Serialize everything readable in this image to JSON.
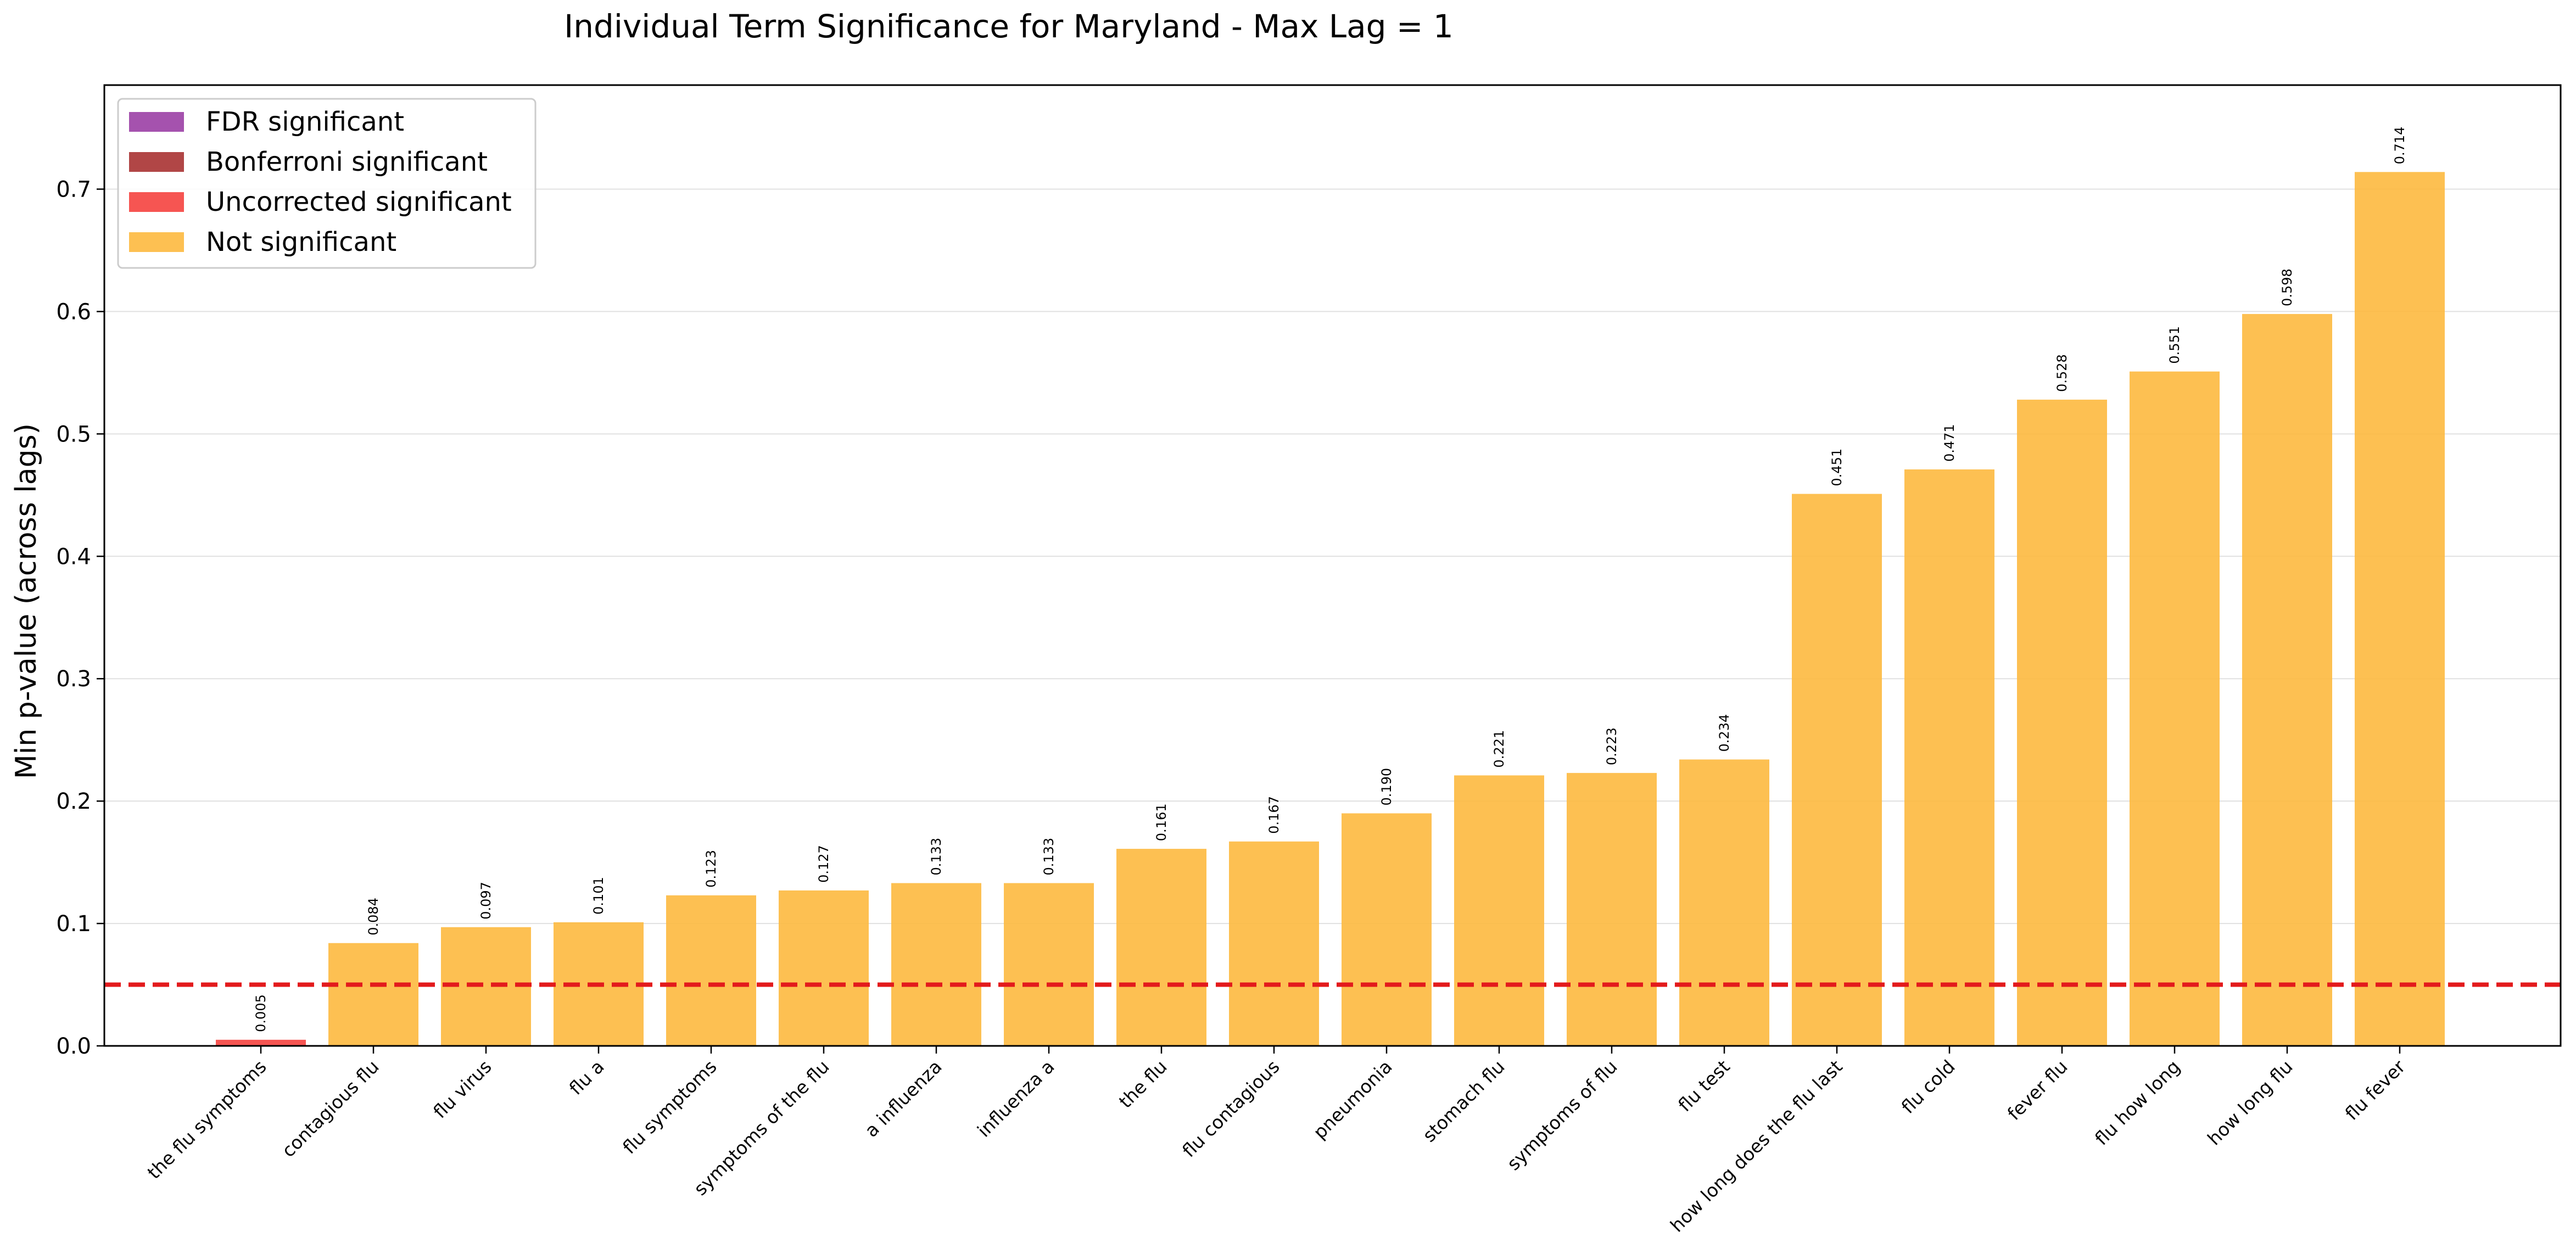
{
  "chart_data": {
    "type": "bar",
    "title": "Individual Term Significance for Maryland - Max Lag = 1",
    "xlabel": "",
    "ylabel": "Min p-value (across lags)",
    "ylim": [
      0,
      0.785
    ],
    "yticks": [
      0.0,
      0.1,
      0.2,
      0.3,
      0.4,
      0.5,
      0.6,
      0.7
    ],
    "ytick_labels": [
      "0.0",
      "0.1",
      "0.2",
      "0.3",
      "0.4",
      "0.5",
      "0.6",
      "0.7"
    ],
    "grid": "horizontal",
    "threshold_line": {
      "value": 0.05,
      "color": "#e31a1c",
      "style": "dashed"
    },
    "legend_position": "top-left",
    "legend": [
      {
        "label": "FDR significant",
        "color": "#9b3fa5"
      },
      {
        "label": "Bonferroni significant",
        "color": "#a83232"
      },
      {
        "label": "Uncorrected significant",
        "color": "#f5423f"
      },
      {
        "label": "Not significant",
        "color": "#fdb93f"
      }
    ],
    "categories": [
      "the flu symptoms",
      "contagious flu",
      "flu virus",
      "flu a",
      "flu symptoms",
      "symptoms of the flu",
      "a influenza",
      "influenza a",
      "the flu",
      "flu contagious",
      "pneumonia",
      "stomach flu",
      "symptoms of flu",
      "flu test",
      "how long does the flu last",
      "flu cold",
      "fever flu",
      "flu how long",
      "how long flu",
      "flu fever"
    ],
    "values": [
      0.005,
      0.084,
      0.097,
      0.101,
      0.123,
      0.127,
      0.133,
      0.133,
      0.161,
      0.167,
      0.19,
      0.221,
      0.223,
      0.234,
      0.451,
      0.471,
      0.528,
      0.551,
      0.598,
      0.714
    ],
    "value_labels": [
      "0.005",
      "0.084",
      "0.097",
      "0.101",
      "0.123",
      "0.127",
      "0.133",
      "0.133",
      "0.161",
      "0.167",
      "0.190",
      "0.221",
      "0.223",
      "0.234",
      "0.451",
      "0.471",
      "0.528",
      "0.551",
      "0.598",
      "0.714"
    ],
    "significance": [
      "Uncorrected significant",
      "Not significant",
      "Not significant",
      "Not significant",
      "Not significant",
      "Not significant",
      "Not significant",
      "Not significant",
      "Not significant",
      "Not significant",
      "Not significant",
      "Not significant",
      "Not significant",
      "Not significant",
      "Not significant",
      "Not significant",
      "Not significant",
      "Not significant",
      "Not significant",
      "Not significant"
    ]
  }
}
